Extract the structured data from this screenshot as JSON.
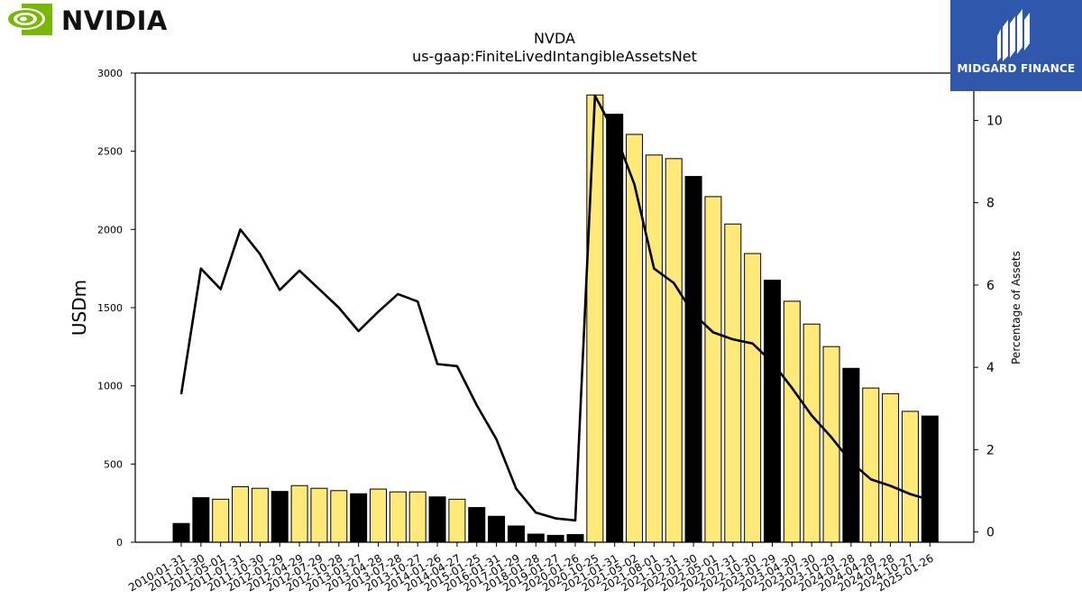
{
  "branding": {
    "company_logo": "NVIDIA",
    "publisher_logo": "MIDGARD FINANCE",
    "colors": {
      "nvidia_green": "#76b900",
      "midgard_blue": "#2f58ad"
    }
  },
  "chart_data": {
    "type": "bar",
    "title": "NVDA",
    "subtitle": "us-gaap:FiniteLivedIntangibleAssetsNet",
    "ylabel": "USDm",
    "y2label": "Percentage of Assets",
    "ylim": [
      0,
      3000
    ],
    "y2lim": [
      -0.25,
      11.15
    ],
    "yticks": [
      0,
      500,
      1000,
      1500,
      2000,
      2500,
      3000
    ],
    "y2ticks": [
      0,
      2,
      4,
      6,
      8,
      10
    ],
    "grid": false,
    "legend": "none",
    "colors": {
      "bar_quarter": "#ffe978",
      "bar_fiscal_year_end": "#000000",
      "line": "#000000"
    },
    "categories": [
      "2010-01-31",
      "2011-01-30",
      "2011-05-01",
      "2011-07-31",
      "2011-10-30",
      "2012-01-29",
      "2012-04-29",
      "2012-07-29",
      "2012-10-28",
      "2013-01-27",
      "2013-04-28",
      "2013-07-28",
      "2013-10-27",
      "2014-01-26",
      "2014-04-27",
      "2015-01-25",
      "2016-01-31",
      "2017-01-29",
      "2018-01-28",
      "2019-01-27",
      "2020-01-26",
      "2020-10-25",
      "2021-01-31",
      "2021-05-02",
      "2021-08-01",
      "2021-10-31",
      "2022-01-30",
      "2022-05-01",
      "2022-07-31",
      "2022-10-30",
      "2023-01-29",
      "2023-04-30",
      "2023-07-30",
      "2023-10-29",
      "2024-01-28",
      "2024-04-28",
      "2024-07-28",
      "2024-10-27",
      "2025-01-26"
    ],
    "series": [
      {
        "values": [
          120,
          285,
          275,
          355,
          345,
          325,
          362,
          345,
          330,
          310,
          340,
          322,
          322,
          290,
          275,
          222,
          166,
          104,
          52,
          44,
          49,
          2860,
          2737,
          2608,
          2476,
          2453,
          2339,
          2210,
          2035,
          1846,
          1676,
          1541,
          1395,
          1251,
          1112,
          986,
          950,
          837,
          807
        ],
        "fiscal_year_end": [
          true,
          true,
          false,
          false,
          false,
          true,
          false,
          false,
          false,
          true,
          false,
          false,
          false,
          true,
          false,
          true,
          true,
          true,
          true,
          true,
          true,
          false,
          true,
          false,
          false,
          false,
          true,
          false,
          false,
          false,
          true,
          false,
          false,
          false,
          true,
          false,
          false,
          false,
          true
        ]
      },
      {
        "axis": "right",
        "values": [
          3.35,
          6.4,
          5.9,
          7.35,
          6.75,
          5.88,
          6.35,
          5.9,
          5.45,
          4.88,
          5.35,
          5.78,
          5.6,
          4.08,
          4.03,
          3.08,
          2.25,
          1.05,
          0.47,
          0.33,
          0.28,
          10.6,
          9.7,
          8.45,
          6.4,
          6.05,
          5.3,
          4.85,
          4.68,
          4.58,
          4.12,
          3.5,
          2.83,
          2.3,
          1.7,
          1.28,
          1.12,
          0.92,
          0.78
        ]
      }
    ]
  }
}
